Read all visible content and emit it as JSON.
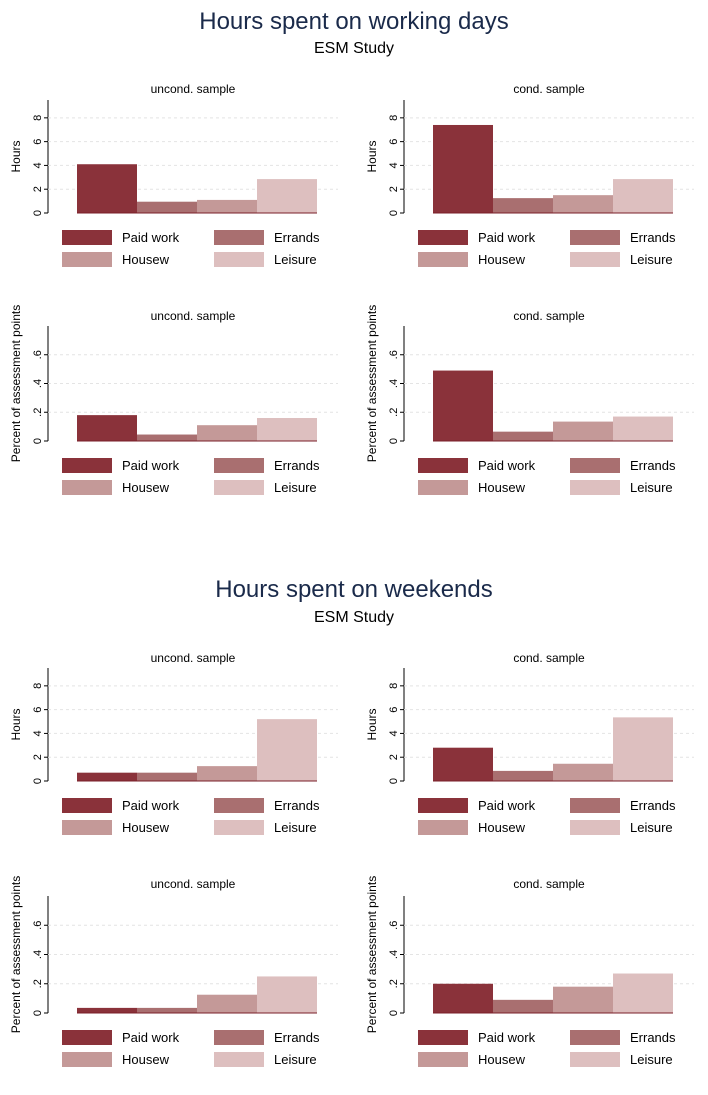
{
  "sections": [
    {
      "title": "Hours spent on working days",
      "subtitle": "ESM Study"
    },
    {
      "title": "Hours spent on weekends",
      "subtitle": "ESM Study"
    }
  ],
  "legend": {
    "items": [
      "Paid work",
      "Errands",
      "Housew",
      "Leisure"
    ],
    "colors": [
      "#8a323a",
      "#a96f70",
      "#c49998",
      "#ddbfbf"
    ]
  },
  "chart_data": [
    {
      "type": "bar",
      "title": "uncond. sample",
      "ylabel": "Hours",
      "ylim": [
        0,
        9.5
      ],
      "ticks": [
        "0",
        "2",
        "4",
        "6",
        "8"
      ],
      "categories": [
        "Paid work",
        "Errands",
        "Housew",
        "Leisure"
      ],
      "values": [
        4.1,
        0.95,
        1.1,
        2.85
      ]
    },
    {
      "type": "bar",
      "title": "cond. sample",
      "ylabel": "Hours",
      "ylim": [
        0,
        9.5
      ],
      "ticks": [
        "0",
        "2",
        "4",
        "6",
        "8"
      ],
      "categories": [
        "Paid work",
        "Errands",
        "Housew",
        "Leisure"
      ],
      "values": [
        7.4,
        1.25,
        1.5,
        2.85
      ]
    },
    {
      "type": "bar",
      "title": "uncond. sample",
      "ylabel": "Percent of assessment points",
      "ylim": [
        0,
        0.8
      ],
      "ticks": [
        "0",
        ".2",
        ".4",
        ".6"
      ],
      "categories": [
        "Paid work",
        "Errands",
        "Housew",
        "Leisure"
      ],
      "values": [
        0.18,
        0.045,
        0.11,
        0.16
      ]
    },
    {
      "type": "bar",
      "title": "cond. sample",
      "ylabel": "Percent of assessment points",
      "ylim": [
        0,
        0.8
      ],
      "ticks": [
        "0",
        ".2",
        ".4",
        ".6"
      ],
      "categories": [
        "Paid work",
        "Errands",
        "Housew",
        "Leisure"
      ],
      "values": [
        0.49,
        0.065,
        0.135,
        0.17
      ]
    },
    {
      "type": "bar",
      "title": "uncond. sample",
      "ylabel": "Hours",
      "ylim": [
        0,
        9.5
      ],
      "ticks": [
        "0",
        "2",
        "4",
        "6",
        "8"
      ],
      "categories": [
        "Paid work",
        "Errands",
        "Housew",
        "Leisure"
      ],
      "values": [
        0.7,
        0.7,
        1.25,
        5.2
      ]
    },
    {
      "type": "bar",
      "title": "cond. sample",
      "ylabel": "Hours",
      "ylim": [
        0,
        9.5
      ],
      "ticks": [
        "0",
        "2",
        "4",
        "6",
        "8"
      ],
      "categories": [
        "Paid work",
        "Errands",
        "Housew",
        "Leisure"
      ],
      "values": [
        2.8,
        0.85,
        1.45,
        5.35
      ]
    },
    {
      "type": "bar",
      "title": "uncond. sample",
      "ylabel": "Percent of assessment points",
      "ylim": [
        0,
        0.8
      ],
      "ticks": [
        "0",
        ".2",
        ".4",
        ".6"
      ],
      "categories": [
        "Paid work",
        "Errands",
        "Housew",
        "Leisure"
      ],
      "values": [
        0.035,
        0.035,
        0.125,
        0.25
      ]
    },
    {
      "type": "bar",
      "title": "cond. sample",
      "ylabel": "Percent of assessment points",
      "ylim": [
        0,
        0.8
      ],
      "ticks": [
        "0",
        ".2",
        ".4",
        ".6"
      ],
      "categories": [
        "Paid work",
        "Errands",
        "Housew",
        "Leisure"
      ],
      "values": [
        0.2,
        0.09,
        0.18,
        0.27
      ]
    }
  ]
}
